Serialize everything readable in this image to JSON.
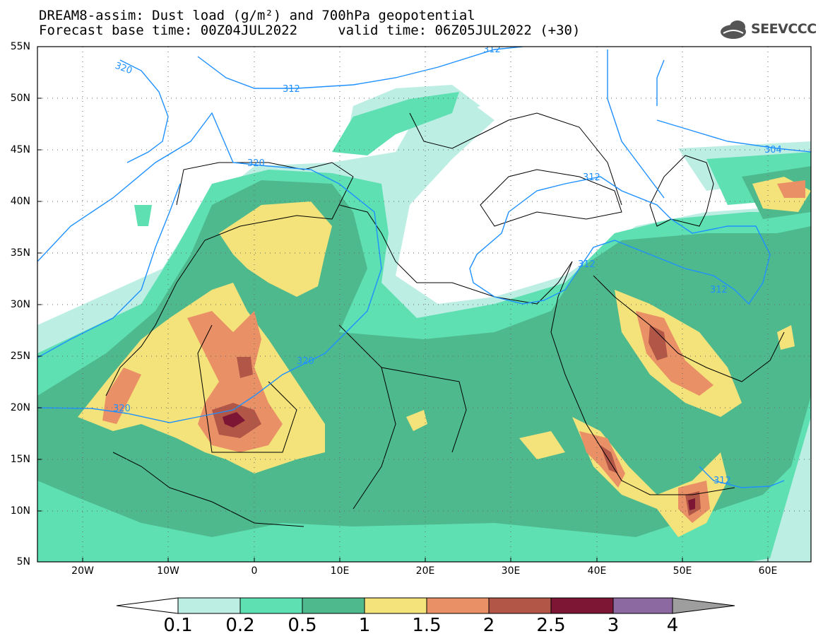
{
  "title_line1": "DREAM8-assim: Dust load (g/m²) and 700hPa geopotential",
  "title_line2": "Forecast base time: 00Z04JUL2022     valid time: 06Z05JUL2022 (+30)",
  "logo_text": "SEEVCCC",
  "lat_labels": [
    "55N",
    "50N",
    "45N",
    "40N",
    "35N",
    "30N",
    "25N",
    "20N",
    "15N",
    "10N",
    "5N"
  ],
  "lon_labels": [
    "20W",
    "10W",
    "0",
    "10E",
    "20E",
    "30E",
    "40E",
    "50E",
    "60E"
  ],
  "colorbar": {
    "levels": [
      "0.1",
      "0.2",
      "0.5",
      "1",
      "1.5",
      "2",
      "2.5",
      "3",
      "4"
    ],
    "colors": [
      "#bdeee4",
      "#5ee0b3",
      "#4fb98e",
      "#f3e37a",
      "#ea9066",
      "#b25647",
      "#7d1634",
      "#8c6aa1"
    ],
    "under_color": "#ffffff",
    "over_color": "#9e9e9e"
  },
  "contour_labels": [
    "320",
    "320",
    "320",
    "320",
    "312",
    "312",
    "312",
    "312",
    "312",
    "312",
    "304"
  ],
  "colors": {
    "contour": "#1e90ff",
    "coast": "#000000",
    "land_bg": "#ffffff"
  }
}
